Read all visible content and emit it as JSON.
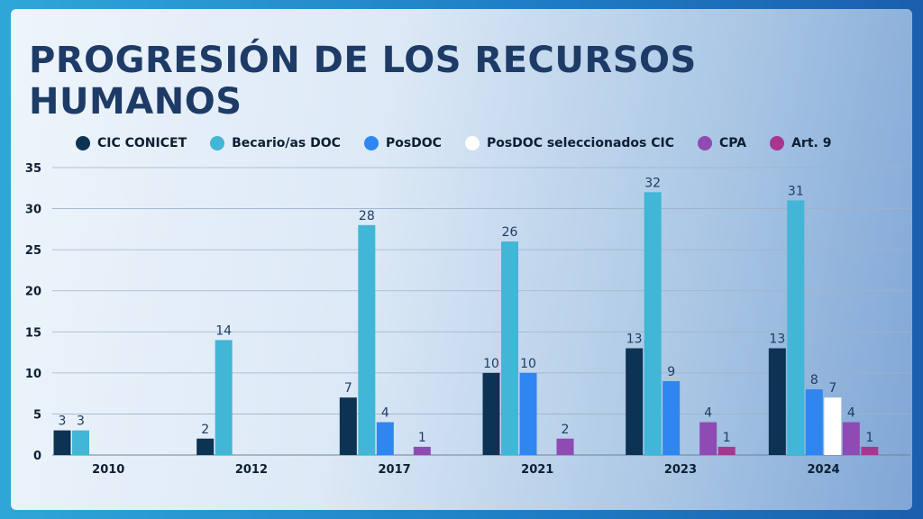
{
  "title": "PROGRESIÓN DE LOS RECURSOS HUMANOS",
  "chart_data": {
    "type": "bar",
    "title": "PROGRESIÓN DE LOS RECURSOS HUMANOS",
    "categories": [
      "2010",
      "2012",
      "2017",
      "2021",
      "2023",
      "2024"
    ],
    "series": [
      {
        "name": "CIC CONICET",
        "color": "#0d3354",
        "values": [
          3,
          2,
          7,
          10,
          13,
          13
        ]
      },
      {
        "name": "Becario/as DOC",
        "color": "#41b6d6",
        "values": [
          3,
          14,
          28,
          26,
          32,
          31
        ]
      },
      {
        "name": "PosDOC",
        "color": "#2f86f0",
        "values": [
          null,
          null,
          4,
          10,
          9,
          8
        ]
      },
      {
        "name": "PosDOC seleccionados CIC",
        "color": "#ffffff",
        "values": [
          null,
          null,
          null,
          null,
          null,
          7
        ]
      },
      {
        "name": "CPA",
        "color": "#8e4bb3",
        "values": [
          null,
          null,
          1,
          2,
          4,
          4
        ]
      },
      {
        "name": "Art. 9",
        "color": "#a8368f",
        "values": [
          null,
          null,
          null,
          null,
          1,
          1
        ]
      }
    ],
    "yticks": [
      0,
      5,
      10,
      15,
      20,
      25,
      30,
      35
    ],
    "ylim": [
      0,
      35
    ],
    "grid": true,
    "legend": "top"
  }
}
